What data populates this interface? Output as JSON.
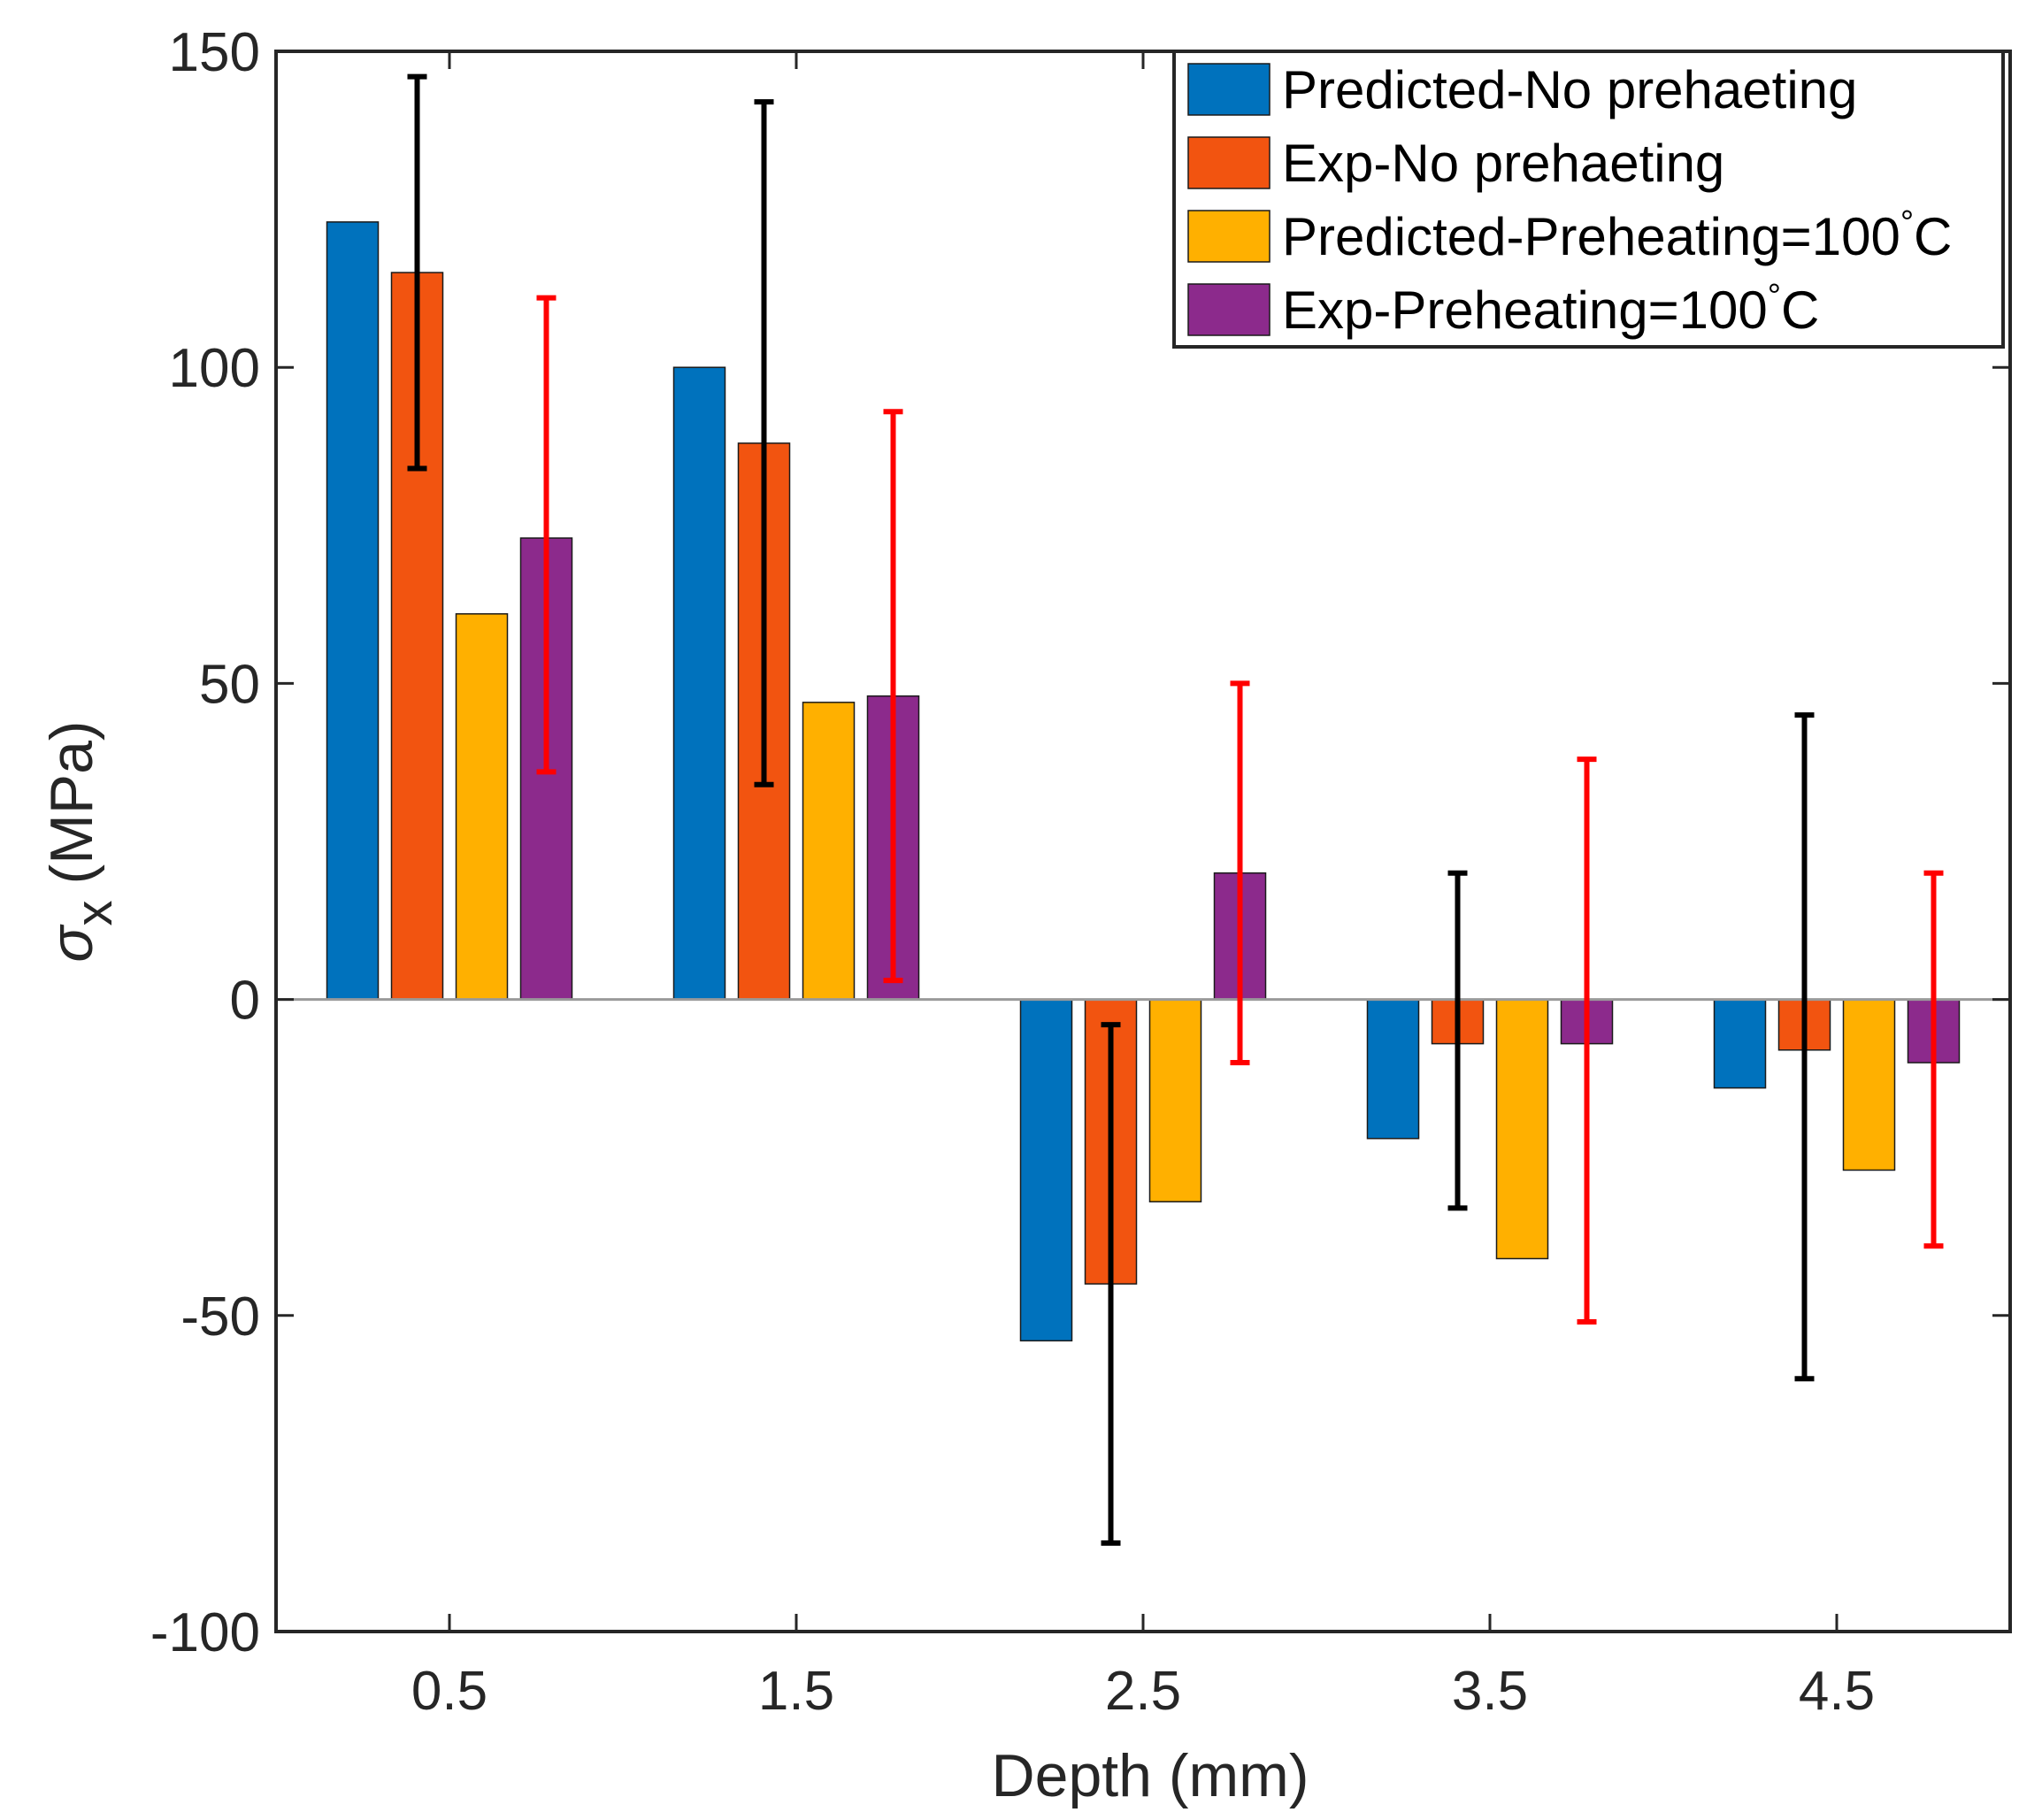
{
  "chart_data": {
    "type": "bar",
    "title": "",
    "xlabel": "Depth (mm)",
    "ylabel": {
      "symbol": "σ",
      "subscript": "x",
      "unit": "(MPa)"
    },
    "ylim": [
      -100,
      150
    ],
    "yticks": [
      "150",
      "100",
      "50",
      "0",
      "-50",
      "-100"
    ],
    "ytick_values": [
      150,
      100,
      50,
      0,
      -50,
      -100
    ],
    "categories": [
      "0.5",
      "1.5",
      "2.5",
      "3.5",
      "4.5"
    ],
    "legend_position": "top-right",
    "series": [
      {
        "name": "Predicted-No prehaeting",
        "color": "#0072BD",
        "values": [
          123,
          100,
          -54,
          -22,
          -14
        ]
      },
      {
        "name": "Exp-No prehaeting",
        "color": "#F25410",
        "values": [
          115,
          88,
          -45,
          -7,
          -8
        ],
        "error_low": [
          84,
          34,
          -86,
          -33,
          -60
        ],
        "error_high": [
          146,
          142,
          -4,
          20,
          45
        ],
        "error_color": "#000000"
      },
      {
        "name": "Predicted-Preheating=100",
        "name_suffix": "C",
        "color": "#FFB000",
        "values": [
          61,
          47,
          -32,
          -41,
          -27
        ]
      },
      {
        "name": "Exp-Preheating=100",
        "name_suffix": "C",
        "color": "#8C2A8C",
        "values": [
          73,
          48,
          20,
          -7,
          -10
        ],
        "error_low": [
          36,
          3,
          -10,
          -51,
          -39
        ],
        "error_high": [
          111,
          93,
          50,
          38,
          20
        ],
        "error_color": "#FF0000"
      }
    ]
  }
}
